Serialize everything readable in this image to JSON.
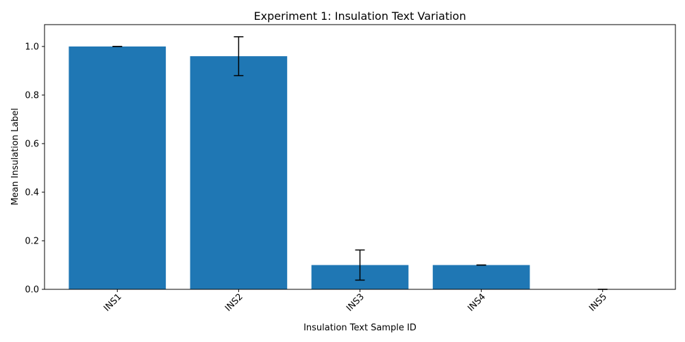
{
  "chart_data": {
    "type": "bar",
    "title": "Experiment 1: Insulation Text Variation",
    "xlabel": "Insulation Text Sample ID",
    "ylabel": "Mean Insulation Label",
    "categories": [
      "INS1",
      "INS2",
      "INS3",
      "INS4",
      "INS5"
    ],
    "values": [
      1.0,
      0.96,
      0.1,
      0.1,
      0.0
    ],
    "errors": [
      0.0,
      0.08,
      0.062,
      0.0,
      0.0
    ],
    "ylim": [
      0,
      1.09
    ],
    "yticks": [
      "0.0",
      "0.2",
      "0.4",
      "0.6",
      "0.8",
      "1.0"
    ],
    "bar_color": "#1f77b4",
    "error_color": "#000000",
    "grid": false,
    "legend": "none"
  }
}
